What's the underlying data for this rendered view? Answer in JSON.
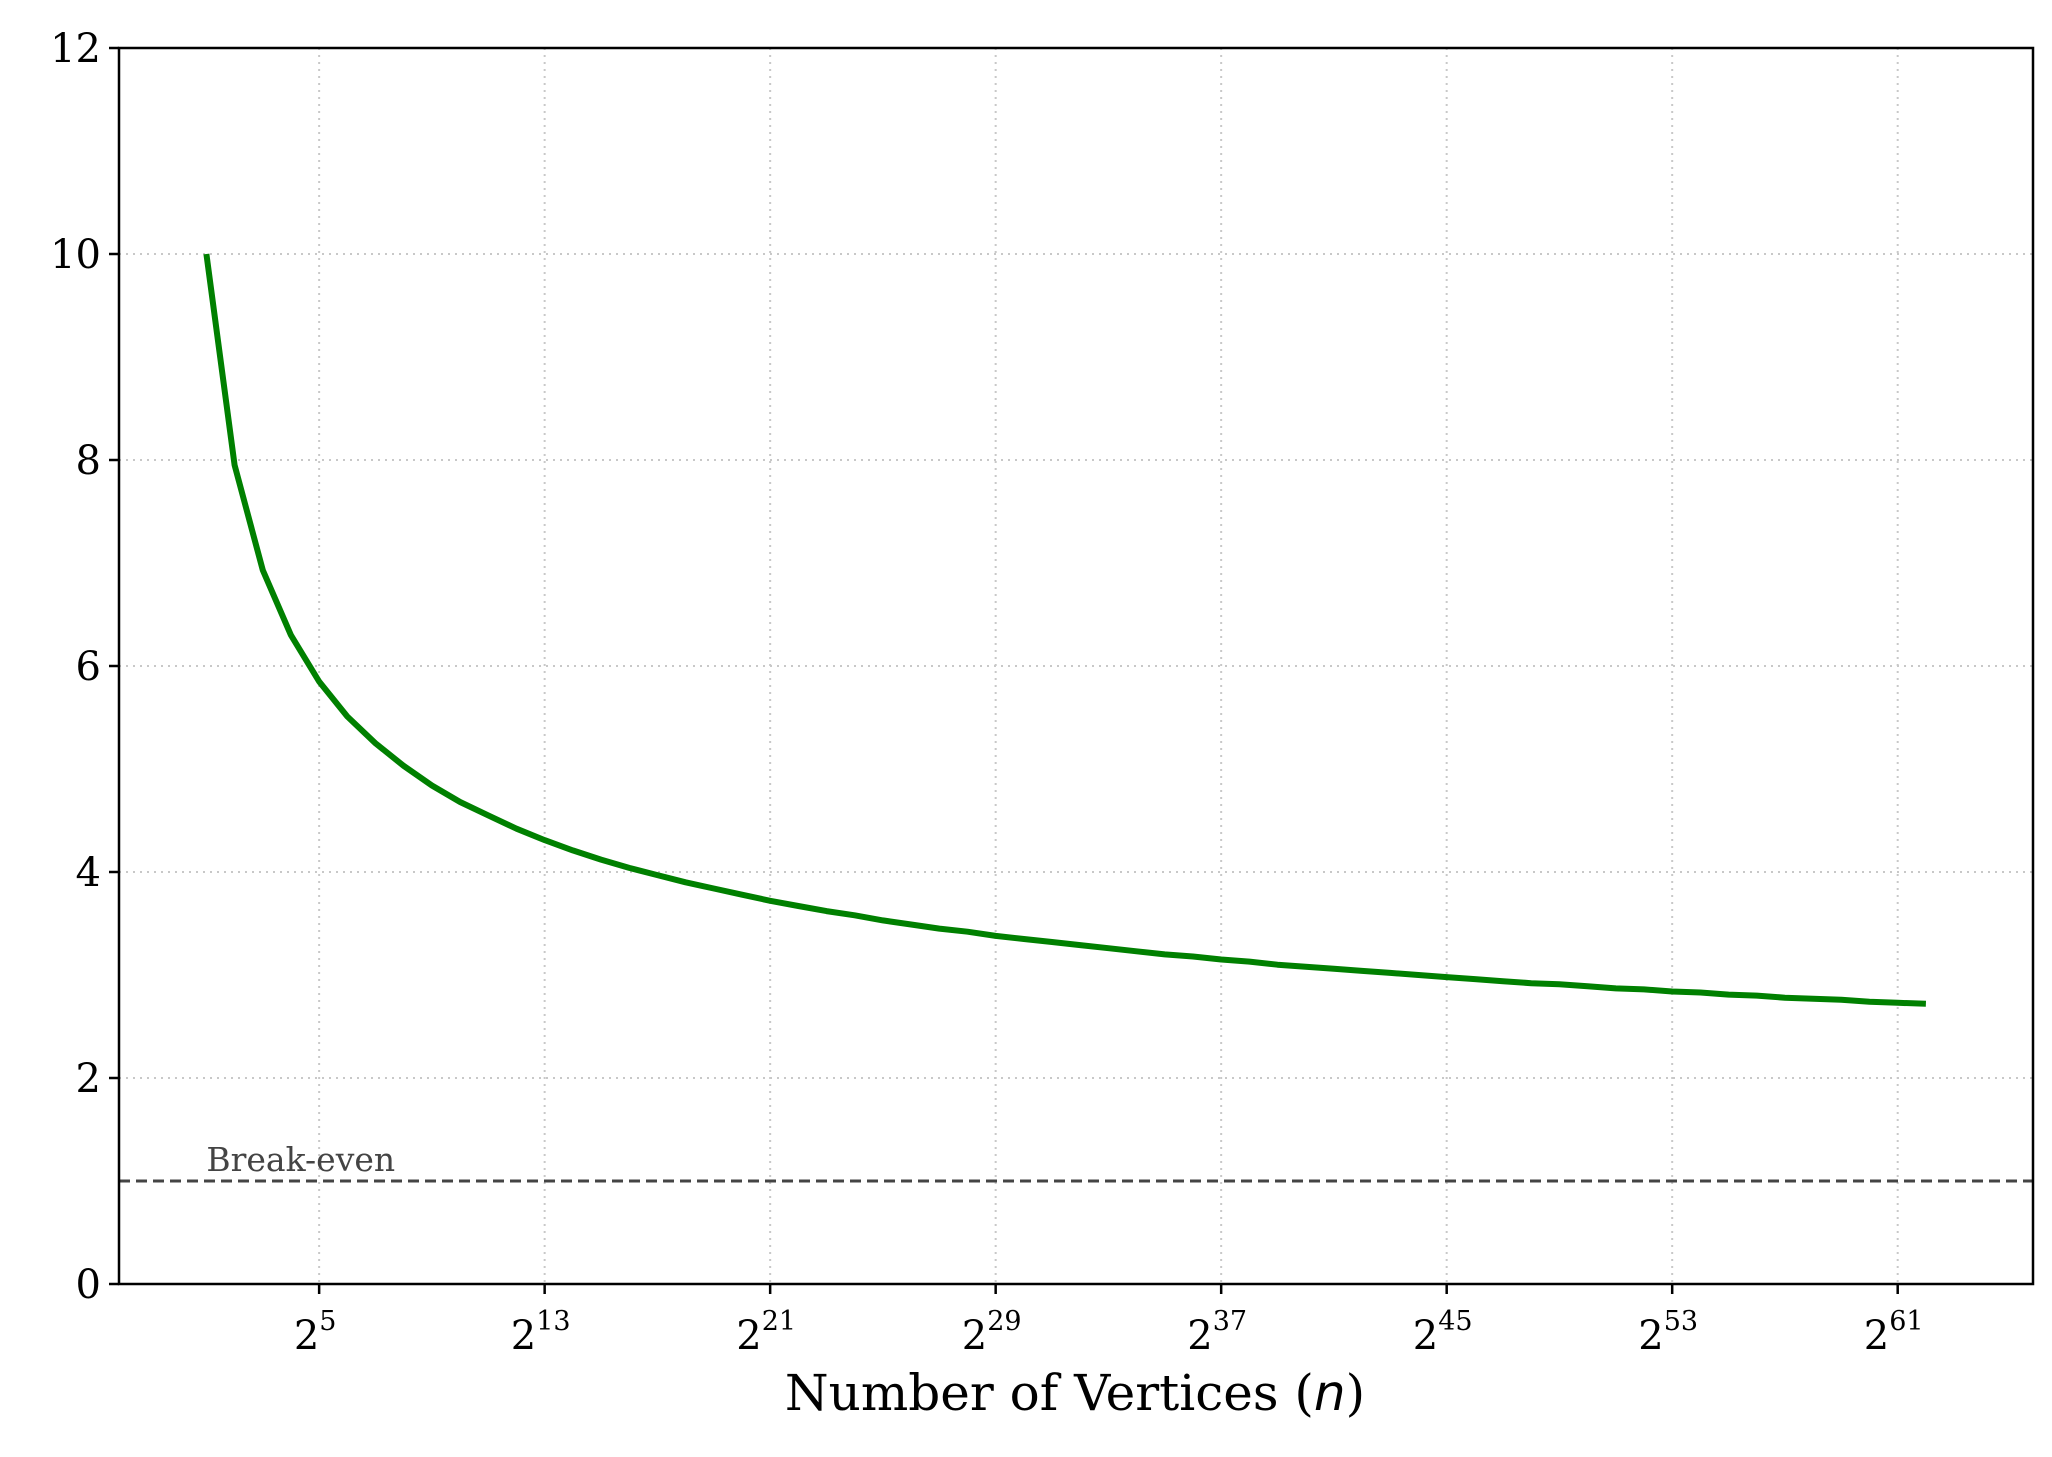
{
  "chart_data": {
    "type": "line",
    "title": "",
    "xlabel": "Number of Vertices (",
    "xlabel_var": "n",
    "xlabel_end": ")",
    "ylabel": "",
    "x_scale": "log2",
    "xlim_exponent": [
      -2.1,
      65.8
    ],
    "ylim": [
      0,
      12
    ],
    "grid": true,
    "grid_style": "dotted",
    "x_ticks": [
      {
        "base": "2",
        "exp": "5",
        "value_exp": 5
      },
      {
        "base": "2",
        "exp": "13",
        "value_exp": 13
      },
      {
        "base": "2",
        "exp": "21",
        "value_exp": 21
      },
      {
        "base": "2",
        "exp": "29",
        "value_exp": 29
      },
      {
        "base": "2",
        "exp": "37",
        "value_exp": 37
      },
      {
        "base": "2",
        "exp": "45",
        "value_exp": 45
      },
      {
        "base": "2",
        "exp": "53",
        "value_exp": 53
      },
      {
        "base": "2",
        "exp": "61",
        "value_exp": 61
      }
    ],
    "y_ticks": [
      "0",
      "2",
      "4",
      "6",
      "8",
      "10",
      "12"
    ],
    "series": [
      {
        "color": "#008000",
        "x_exponent": [
          1,
          2,
          3,
          4,
          5,
          6,
          7,
          8,
          9,
          10,
          11,
          12,
          13,
          14,
          15,
          16,
          17,
          18,
          19,
          20,
          21,
          22,
          23,
          24,
          25,
          26,
          27,
          28,
          29,
          30,
          31,
          32,
          33,
          34,
          35,
          36,
          37,
          38,
          39,
          40,
          41,
          42,
          43,
          44,
          45,
          46,
          47,
          48,
          49,
          50,
          51,
          52,
          53,
          54,
          55,
          56,
          57,
          58,
          59,
          60,
          61,
          62
        ],
        "y": [
          10.0,
          7.95,
          6.93,
          6.3,
          5.85,
          5.51,
          5.25,
          5.03,
          4.84,
          4.68,
          4.55,
          4.42,
          4.31,
          4.21,
          4.12,
          4.04,
          3.97,
          3.9,
          3.84,
          3.78,
          3.72,
          3.67,
          3.62,
          3.58,
          3.53,
          3.49,
          3.45,
          3.42,
          3.38,
          3.35,
          3.32,
          3.29,
          3.26,
          3.23,
          3.2,
          3.18,
          3.15,
          3.13,
          3.1,
          3.08,
          3.06,
          3.04,
          3.02,
          3.0,
          2.98,
          2.96,
          2.94,
          2.92,
          2.91,
          2.89,
          2.87,
          2.86,
          2.84,
          2.83,
          2.81,
          2.8,
          2.78,
          2.77,
          2.76,
          2.74,
          2.73,
          2.72
        ]
      }
    ],
    "reference_line": {
      "y": 1,
      "label": "Break-even",
      "color": "#444444",
      "style": "dashed"
    }
  }
}
